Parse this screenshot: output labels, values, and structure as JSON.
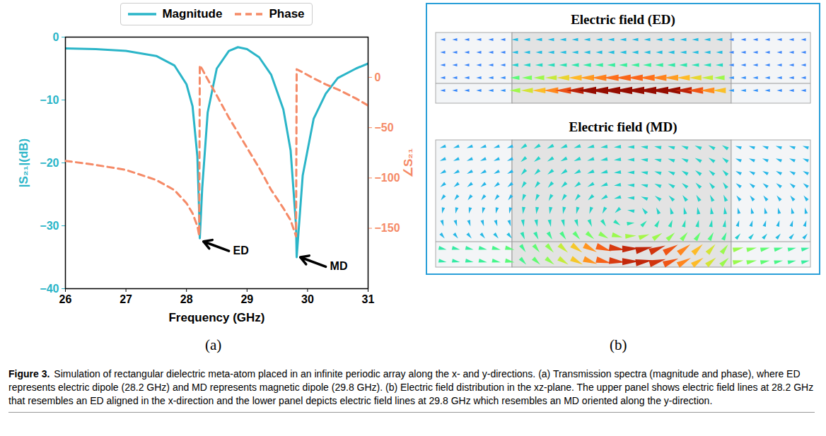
{
  "chart_data": {
    "type": "line",
    "xlabel": "Frequency (GHz)",
    "ylabel": "|S₂₁|(dB)",
    "y2label": "∠S₂₁",
    "x": [
      26,
      26.5,
      27,
      27.5,
      27.8,
      28.0,
      28.1,
      28.18,
      28.21,
      28.22,
      28.26,
      28.35,
      28.5,
      28.7,
      28.85,
      29.0,
      29.2,
      29.4,
      29.6,
      29.72,
      29.81,
      29.82,
      29.92,
      30.1,
      30.3,
      30.5,
      30.8,
      31
    ],
    "series": [
      {
        "name": "Magnitude",
        "color": "#2bb5c8",
        "line_style": "solid",
        "values": [
          -1.8,
          -1.9,
          -2.2,
          -3.0,
          -4.5,
          -7.5,
          -11,
          -19,
          -28,
          -32,
          -24,
          -12,
          -5,
          -2.2,
          -1.6,
          -1.9,
          -3.2,
          -6,
          -11.5,
          -18,
          -30,
          -35,
          -22,
          -13,
          -9,
          -6.5,
          -5,
          -4.2
        ]
      },
      {
        "name": "Phase",
        "color": "#f58a67",
        "line_style": "dashed",
        "axis": "y2",
        "values": [
          -83,
          -87,
          -92,
          -102,
          -112,
          -125,
          -135,
          -148,
          -157,
          12,
          8,
          -2,
          -18,
          -40,
          -55,
          -70,
          -90,
          -112,
          -130,
          -142,
          -158,
          8,
          5,
          -1,
          -7,
          -12,
          -21,
          -28
        ]
      }
    ],
    "xlim": [
      26,
      31
    ],
    "xticks": [
      26,
      27,
      28,
      29,
      30,
      31
    ],
    "ylim": [
      -40,
      0
    ],
    "yticks": [
      -40,
      -30,
      -20,
      -10,
      0
    ],
    "y2lim": [
      -210,
      40
    ],
    "y2ticks": [
      -150,
      -100,
      -50,
      0
    ],
    "grid": false,
    "legend": "top",
    "annotations": [
      {
        "text": "ED",
        "x": 28.28,
        "y": -32.5
      },
      {
        "text": "MD",
        "x": 29.88,
        "y": -35
      }
    ]
  },
  "panel_labels": [
    "(a)",
    "(b)"
  ],
  "field_panel": {
    "titles": [
      "Electric field (ED)",
      "Electric field (MD)"
    ]
  },
  "caption": {
    "label": "Figure 3.",
    "text": "Simulation of rectangular dielectric meta-atom placed in an infinite periodic array along the x- and y-directions. (a) Transmission spectra (magnitude and phase), where ED represents electric dipole (28.2 GHz) and MD represents magnetic dipole (29.8 GHz). (b) Electric field distribution in the xz-plane. The upper panel shows electric field lines at 28.2 GHz that resembles an ED aligned in the x-direction and the lower panel depicts electric field lines at 29.8 GHz which resembles an MD oriented along the y-direction."
  }
}
